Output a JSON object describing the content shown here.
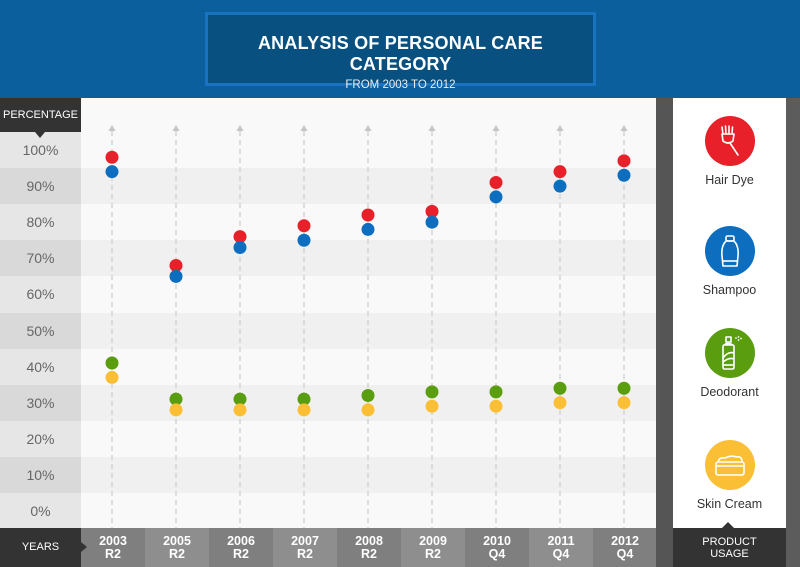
{
  "header": {
    "title": "ANALYSIS OF PERSONAL CARE CATEGORY",
    "subtitle": "FROM 2003 TO 2012"
  },
  "axis": {
    "y_heading": "PERCENTAGE",
    "x_heading": "YEARS",
    "legend_heading_line1": "PRODUCT",
    "legend_heading_line2": "USAGE"
  },
  "legend": [
    {
      "label": "Hair Dye",
      "icon": "hair-dye-brush-icon",
      "color": "#e8202a"
    },
    {
      "label": "Shampoo",
      "icon": "shampoo-bottle-icon",
      "color": "#0d6ebf"
    },
    {
      "label": "Deodorant",
      "icon": "deodorant-spray-icon",
      "color": "#5a9e0f"
    },
    {
      "label": "Skin Cream",
      "icon": "skin-cream-jar-icon",
      "color": "#fbbf36"
    }
  ],
  "chart_data": {
    "type": "scatter",
    "title": "ANALYSIS OF PERSONAL CARE CATEGORY",
    "subtitle": "FROM 2003 TO 2012",
    "xlabel": "YEARS",
    "ylabel": "PERCENTAGE",
    "ylim": [
      0,
      100
    ],
    "yticks": [
      "0%",
      "10%",
      "20%",
      "30%",
      "40%",
      "50%",
      "60%",
      "70%",
      "80%",
      "90%",
      "100%"
    ],
    "categories": [
      {
        "year": "2003",
        "period": "R2"
      },
      {
        "year": "2005",
        "period": "R2"
      },
      {
        "year": "2006",
        "period": "R2"
      },
      {
        "year": "2007",
        "period": "R2"
      },
      {
        "year": "2008",
        "period": "R2"
      },
      {
        "year": "2009",
        "period": "R2"
      },
      {
        "year": "2010",
        "period": "Q4"
      },
      {
        "year": "2011",
        "period": "Q4"
      },
      {
        "year": "2012",
        "period": "Q4"
      }
    ],
    "series": [
      {
        "name": "Hair Dye",
        "color": "#e8202a",
        "values": [
          98,
          68,
          76,
          79,
          82,
          83,
          91,
          94,
          97
        ]
      },
      {
        "name": "Shampoo",
        "color": "#0d6ebf",
        "values": [
          94,
          65,
          73,
          75,
          78,
          80,
          87,
          90,
          93
        ]
      },
      {
        "name": "Deodorant",
        "color": "#5a9e0f",
        "values": [
          41,
          31,
          31,
          31,
          32,
          33,
          33,
          34,
          34
        ]
      },
      {
        "name": "Skin Cream",
        "color": "#fbbf36",
        "values": [
          37,
          28,
          28,
          28,
          28,
          29,
          29,
          30,
          30
        ]
      }
    ],
    "grid": true,
    "legend_position": "right"
  }
}
